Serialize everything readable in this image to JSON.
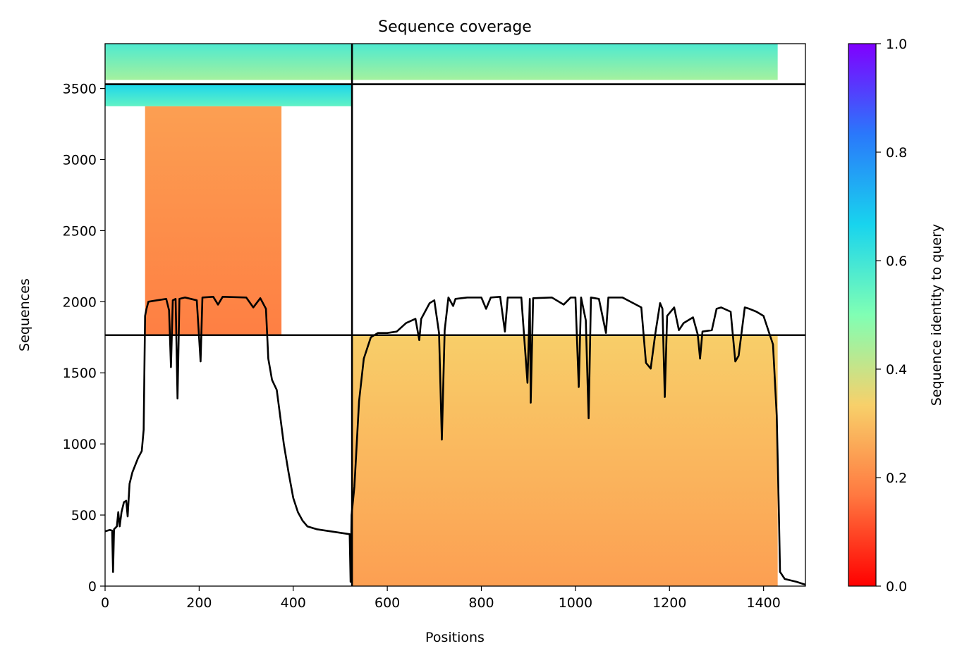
{
  "chart_data": {
    "type": "heatmap",
    "title": "Sequence coverage",
    "xlabel": "Positions",
    "ylabel": "Sequences",
    "xlim": [
      0,
      1489
    ],
    "ylim": [
      0,
      3815
    ],
    "xticks": [
      0,
      200,
      400,
      600,
      800,
      1000,
      1200,
      1400
    ],
    "yticks": [
      0,
      500,
      1000,
      1500,
      2000,
      2500,
      3000,
      3500
    ],
    "colorbar": {
      "label": "Sequence identity to query",
      "range": [
        0.0,
        1.0
      ],
      "ticks": [
        "0.0",
        "0.2",
        "0.4",
        "0.6",
        "0.8",
        "1.0"
      ],
      "colormap": "rainbow",
      "colors": [
        "#ff0000",
        "#ff7840",
        "#f8d06a",
        "#80ffb4",
        "#18d4ee",
        "#2a78fb",
        "#8000ff"
      ]
    },
    "domain_boundaries": {
      "vertical_x": 525,
      "horizontal_y": [
        1765,
        3530
      ]
    },
    "blocks": [
      {
        "name": "domain2-aligned",
        "x0": 525,
        "x1": 1430,
        "y0": 0,
        "y1": 1765,
        "identity_bottom": 0.24,
        "identity_top": 0.33
      },
      {
        "name": "domain1-aligned",
        "x0": 85,
        "x1": 375,
        "y0": 1765,
        "y1": 3375,
        "identity_bottom": 0.18,
        "identity_top": 0.24
      },
      {
        "name": "domain1-high",
        "x0": 0,
        "x1": 525,
        "y0": 3375,
        "y1": 3530,
        "identity_bottom": 0.55,
        "identity_top": 0.66
      },
      {
        "name": "fullseq-left",
        "x0": 0,
        "x1": 525,
        "y0": 3560,
        "y1": 3815,
        "identity_bottom": 0.45,
        "identity_top": 0.58
      },
      {
        "name": "fullseq-right",
        "x0": 525,
        "x1": 1430,
        "y0": 3560,
        "y1": 3815,
        "identity_bottom": 0.45,
        "identity_top": 0.58
      }
    ],
    "coverage_line": [
      [
        0,
        385
      ],
      [
        10,
        395
      ],
      [
        15,
        390
      ],
      [
        17,
        100
      ],
      [
        19,
        400
      ],
      [
        25,
        420
      ],
      [
        28,
        520
      ],
      [
        31,
        420
      ],
      [
        35,
        520
      ],
      [
        40,
        590
      ],
      [
        45,
        600
      ],
      [
        48,
        490
      ],
      [
        52,
        720
      ],
      [
        58,
        800
      ],
      [
        70,
        900
      ],
      [
        78,
        950
      ],
      [
        82,
        1100
      ],
      [
        85,
        1900
      ],
      [
        88,
        1950
      ],
      [
        92,
        2000
      ],
      [
        110,
        2010
      ],
      [
        130,
        2020
      ],
      [
        136,
        1940
      ],
      [
        140,
        1540
      ],
      [
        144,
        2010
      ],
      [
        150,
        2020
      ],
      [
        154,
        1320
      ],
      [
        158,
        2020
      ],
      [
        170,
        2030
      ],
      [
        195,
        2010
      ],
      [
        203,
        1580
      ],
      [
        207,
        2030
      ],
      [
        230,
        2035
      ],
      [
        240,
        1980
      ],
      [
        250,
        2035
      ],
      [
        300,
        2030
      ],
      [
        315,
        1960
      ],
      [
        330,
        2025
      ],
      [
        342,
        1950
      ],
      [
        347,
        1600
      ],
      [
        355,
        1450
      ],
      [
        365,
        1380
      ],
      [
        380,
        1000
      ],
      [
        390,
        800
      ],
      [
        400,
        620
      ],
      [
        410,
        520
      ],
      [
        420,
        460
      ],
      [
        430,
        420
      ],
      [
        450,
        400
      ],
      [
        480,
        385
      ],
      [
        500,
        375
      ],
      [
        520,
        365
      ],
      [
        522,
        30
      ],
      [
        524,
        500
      ],
      [
        530,
        700
      ],
      [
        540,
        1300
      ],
      [
        550,
        1600
      ],
      [
        565,
        1750
      ],
      [
        580,
        1780
      ],
      [
        600,
        1780
      ],
      [
        620,
        1790
      ],
      [
        640,
        1850
      ],
      [
        660,
        1880
      ],
      [
        668,
        1730
      ],
      [
        672,
        1880
      ],
      [
        690,
        1990
      ],
      [
        700,
        2010
      ],
      [
        710,
        1780
      ],
      [
        716,
        1030
      ],
      [
        722,
        1800
      ],
      [
        730,
        2030
      ],
      [
        740,
        1970
      ],
      [
        745,
        2020
      ],
      [
        770,
        2030
      ],
      [
        800,
        2030
      ],
      [
        810,
        1950
      ],
      [
        820,
        2030
      ],
      [
        840,
        2035
      ],
      [
        850,
        1790
      ],
      [
        856,
        2030
      ],
      [
        885,
        2030
      ],
      [
        898,
        1430
      ],
      [
        903,
        2020
      ],
      [
        905,
        1290
      ],
      [
        910,
        2025
      ],
      [
        950,
        2030
      ],
      [
        975,
        1980
      ],
      [
        990,
        2030
      ],
      [
        1000,
        2030
      ],
      [
        1007,
        1400
      ],
      [
        1012,
        2030
      ],
      [
        1022,
        1870
      ],
      [
        1028,
        1180
      ],
      [
        1033,
        2030
      ],
      [
        1050,
        2020
      ],
      [
        1065,
        1780
      ],
      [
        1070,
        2030
      ],
      [
        1100,
        2030
      ],
      [
        1140,
        1960
      ],
      [
        1150,
        1570
      ],
      [
        1160,
        1530
      ],
      [
        1170,
        1780
      ],
      [
        1180,
        1990
      ],
      [
        1185,
        1950
      ],
      [
        1190,
        1330
      ],
      [
        1195,
        1900
      ],
      [
        1210,
        1960
      ],
      [
        1220,
        1800
      ],
      [
        1230,
        1850
      ],
      [
        1250,
        1890
      ],
      [
        1260,
        1770
      ],
      [
        1265,
        1600
      ],
      [
        1270,
        1790
      ],
      [
        1290,
        1800
      ],
      [
        1300,
        1950
      ],
      [
        1310,
        1960
      ],
      [
        1330,
        1930
      ],
      [
        1340,
        1580
      ],
      [
        1347,
        1620
      ],
      [
        1360,
        1960
      ],
      [
        1370,
        1950
      ],
      [
        1385,
        1930
      ],
      [
        1400,
        1900
      ],
      [
        1420,
        1700
      ],
      [
        1428,
        1200
      ],
      [
        1432,
        600
      ],
      [
        1435,
        100
      ],
      [
        1445,
        50
      ],
      [
        1470,
        30
      ],
      [
        1489,
        10
      ]
    ]
  }
}
